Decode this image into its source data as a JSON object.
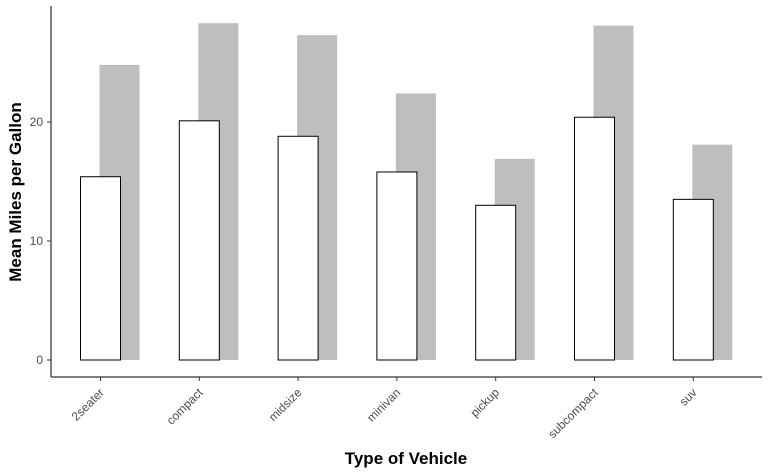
{
  "chart_data": {
    "type": "bar",
    "title": "",
    "xlabel": "Type of Vehicle",
    "ylabel": "Mean Miles per Gallon",
    "categories": [
      "2seater",
      "compact",
      "midsize",
      "minivan",
      "pickup",
      "subcompact",
      "suv"
    ],
    "series": [
      {
        "values": [
          24.8,
          28.3,
          27.3,
          22.4,
          16.9,
          28.1,
          18.1
        ]
      },
      {
        "values": [
          15.4,
          20.1,
          18.8,
          15.8,
          13.0,
          20.4,
          13.5
        ]
      }
    ],
    "ylim": [
      0,
      29.5
    ],
    "yticks": [
      0,
      10,
      20
    ],
    "grid": false,
    "legend": "none",
    "colors": {
      "back_bar": "#bebebe",
      "front_bar": "#ffffff",
      "front_stroke": "#000000",
      "axis": "#000000"
    }
  }
}
